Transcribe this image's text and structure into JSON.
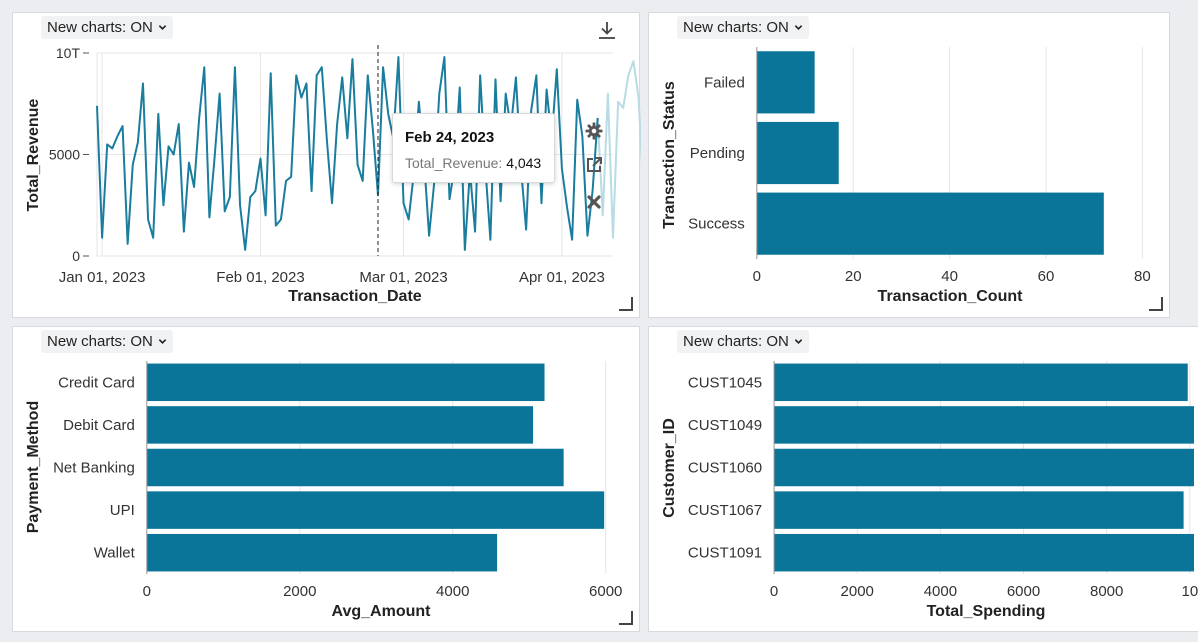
{
  "charts_toggle_label": "New charts: ON",
  "colors": {
    "bar": "#0a7599",
    "line": "#1a7d9e",
    "line_faded": "#b9dbe4",
    "grid": "#e6e6e6",
    "axis_text": "#333333"
  },
  "icons": {
    "download": "download-icon",
    "settings": "gear-icon",
    "open": "external-link-icon",
    "close": "close-icon",
    "dropdown": "chevron-down-icon"
  },
  "revenue_chart": {
    "tooltip": {
      "date": "Feb 24, 2023",
      "key": "Total_Revenue:",
      "value": "4,043"
    },
    "chart_data": {
      "type": "line",
      "xlabel": "Transaction_Date",
      "ylabel": "Total_Revenue",
      "x_ticks": [
        "Jan 01, 2023",
        "Feb 01, 2023",
        "Mar 01, 2023",
        "Apr 01, 2023"
      ],
      "y_ticks": [
        "0",
        "5000",
        "10T"
      ],
      "ylim": [
        0,
        10000
      ],
      "x_start": "2022-12-31",
      "x_end": "2023-04-11",
      "hover_date": "2023-02-24",
      "faded_from_index": 98,
      "values": [
        7400,
        900,
        5500,
        5300,
        5900,
        6400,
        600,
        4500,
        5600,
        8500,
        1800,
        900,
        7000,
        2500,
        5400,
        5000,
        6500,
        1200,
        4600,
        3400,
        6800,
        9300,
        1900,
        4800,
        8000,
        2200,
        2900,
        9300,
        2500,
        300,
        2900,
        3200,
        4800,
        2000,
        9000,
        1500,
        1800,
        3700,
        3900,
        8900,
        7800,
        8500,
        3200,
        8900,
        9300,
        5700,
        2600,
        6500,
        8800,
        5800,
        9700,
        4500,
        3700,
        8900,
        6200,
        3000,
        9300,
        7000,
        5800,
        9800,
        2600,
        1800,
        4043,
        7600,
        4800,
        1000,
        3600,
        8000,
        9800,
        2800,
        4400,
        8300,
        300,
        4200,
        1200,
        8900,
        4400,
        800,
        8700,
        2700,
        8000,
        6300,
        8800,
        4300,
        1300,
        7200,
        8900,
        2600,
        8200,
        5800,
        9200,
        4300,
        2400,
        800,
        7700,
        5900,
        1000,
        3200,
        6800,
        2000,
        8000,
        900,
        7600,
        7300,
        8900,
        9600,
        7800,
        2900,
        1500,
        4100,
        500,
        3200
      ]
    }
  },
  "status_chart": {
    "chart_data": {
      "type": "bar",
      "orientation": "horizontal",
      "categories": [
        "Failed",
        "Pending",
        "Success"
      ],
      "values": [
        12,
        17,
        72
      ],
      "xlabel": "Transaction_Count",
      "ylabel": "Transaction_Status",
      "x_ticks": [
        "0",
        "20",
        "40",
        "60",
        "80"
      ],
      "xlim": [
        -1,
        82
      ]
    }
  },
  "payment_chart": {
    "chart_data": {
      "type": "bar",
      "orientation": "horizontal",
      "categories": [
        "Credit Card",
        "Debit Card",
        "Net Banking",
        "UPI",
        "Wallet"
      ],
      "values": [
        5200,
        5050,
        5450,
        5980,
        4580
      ],
      "xlabel": "Avg_Amount",
      "ylabel": "Payment_Method",
      "x_ticks": [
        "0",
        "2000",
        "4000",
        "6000"
      ],
      "xlim": [
        -50,
        6200
      ]
    }
  },
  "customer_chart": {
    "chart_data": {
      "type": "bar",
      "orientation": "horizontal",
      "categories": [
        "CUST1045",
        "CUST1049",
        "CUST1060",
        "CUST1067",
        "CUST1091"
      ],
      "values": [
        9950,
        10100,
        10100,
        9850,
        10100
      ],
      "xlabel": "Total_Spending",
      "ylabel": "Customer_ID",
      "x_ticks": [
        "0",
        "2000",
        "4000",
        "6000",
        "8000",
        "10"
      ],
      "xlim": [
        -50,
        10100
      ]
    }
  }
}
